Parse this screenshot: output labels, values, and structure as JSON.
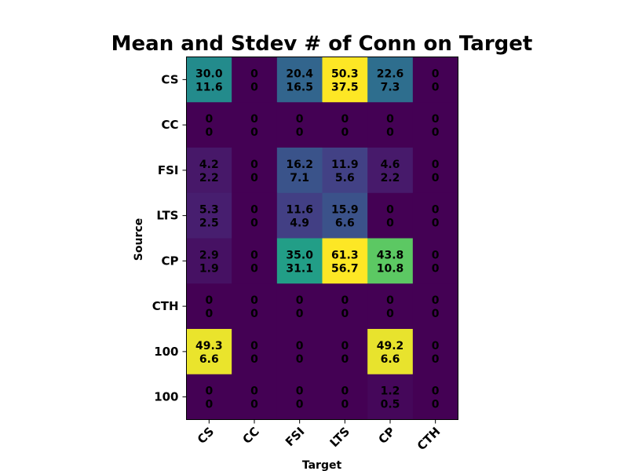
{
  "chart_data": {
    "type": "heatmap",
    "title": "Mean and Stdev # of Conn on Target",
    "xlabel": "Target",
    "ylabel": "Source",
    "x_categories": [
      "CS",
      "CC",
      "FSI",
      "LTS",
      "CP",
      "CTH"
    ],
    "y_categories": [
      "CS",
      "CC",
      "FSI",
      "LTS",
      "CP",
      "CTH",
      "100",
      "100"
    ],
    "mean": [
      [
        "30.0",
        "0",
        "20.4",
        "50.3",
        "22.6",
        "0"
      ],
      [
        "0",
        "0",
        "0",
        "0",
        "0",
        "0"
      ],
      [
        "4.2",
        "0",
        "16.2",
        "11.9",
        "4.6",
        "0"
      ],
      [
        "5.3",
        "0",
        "11.6",
        "15.9",
        "0",
        "0"
      ],
      [
        "2.9",
        "0",
        "35.0",
        "61.3",
        "43.8",
        "0"
      ],
      [
        "0",
        "0",
        "0",
        "0",
        "0",
        "0"
      ],
      [
        "49.3",
        "0",
        "0",
        "0",
        "49.2",
        "0"
      ],
      [
        "0",
        "0",
        "0",
        "0",
        "1.2",
        "0"
      ]
    ],
    "stdev": [
      [
        "11.6",
        "0",
        "16.5",
        "37.5",
        "7.3",
        "0"
      ],
      [
        "0",
        "0",
        "0",
        "0",
        "0",
        "0"
      ],
      [
        "2.2",
        "0",
        "7.1",
        "5.6",
        "2.2",
        "0"
      ],
      [
        "2.5",
        "0",
        "4.9",
        "6.6",
        "0",
        "0"
      ],
      [
        "1.9",
        "0",
        "31.1",
        "56.7",
        "10.8",
        "0"
      ],
      [
        "0",
        "0",
        "0",
        "0",
        "0",
        "0"
      ],
      [
        "6.6",
        "0",
        "0",
        "0",
        "6.6",
        "0"
      ],
      [
        "0",
        "0",
        "0",
        "0",
        "0.5",
        "0"
      ]
    ],
    "colormap": "viridis",
    "value_range": [
      0,
      50
    ],
    "grid": false
  }
}
